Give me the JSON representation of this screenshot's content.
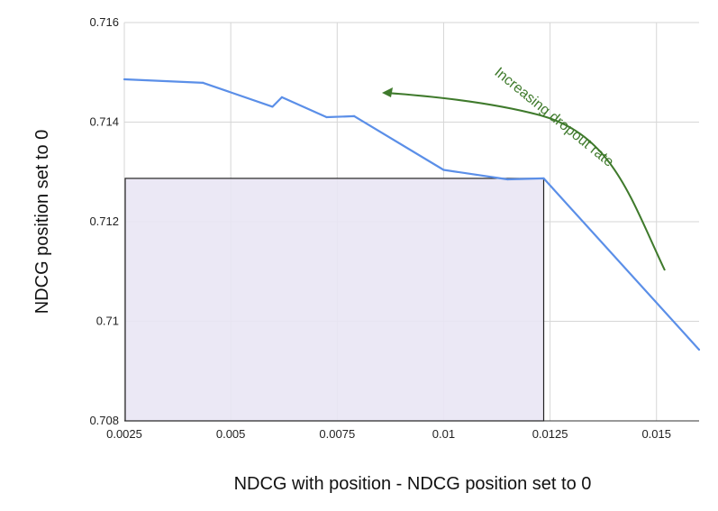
{
  "chart_data": {
    "type": "line",
    "xlabel": "NDCG with position - NDCG position set to 0",
    "ylabel": "NDCG position set to 0",
    "xlim": [
      0.0025,
      0.016
    ],
    "ylim": [
      0.708,
      0.716
    ],
    "x_ticks": [
      0.0025,
      0.005,
      0.0075,
      0.01,
      0.0125,
      0.015
    ],
    "x_tick_labels": [
      "0.0025",
      "0.005",
      "0.0075",
      "0.01",
      "0.0125",
      "0.015"
    ],
    "y_ticks": [
      0.708,
      0.71,
      0.712,
      0.714,
      0.716
    ],
    "y_tick_labels": [
      "0.708",
      "0.71",
      "0.712",
      "0.714",
      "0.716"
    ],
    "grid": true,
    "legend": "none",
    "series": [
      {
        "color": "#5b8fe8",
        "points": [
          {
            "x": 0.0025,
            "y": 0.71486
          },
          {
            "x": 0.00435,
            "y": 0.71479
          },
          {
            "x": 0.00598,
            "y": 0.71431
          },
          {
            "x": 0.0062,
            "y": 0.7145
          },
          {
            "x": 0.00725,
            "y": 0.7141
          },
          {
            "x": 0.0079,
            "y": 0.71412
          },
          {
            "x": 0.01,
            "y": 0.71304
          },
          {
            "x": 0.0115,
            "y": 0.71285
          },
          {
            "x": 0.01235,
            "y": 0.71287
          },
          {
            "x": 0.016,
            "y": 0.70943
          }
        ]
      }
    ],
    "highlight_region": {
      "x": [
        0.0025,
        0.01235
      ],
      "y": [
        0.708,
        0.71287
      ],
      "fill": "#e9e6f4",
      "stroke": "#222222"
    },
    "annotation": {
      "text": "Increasing dropout rate",
      "color": "#3f7a2c"
    }
  }
}
